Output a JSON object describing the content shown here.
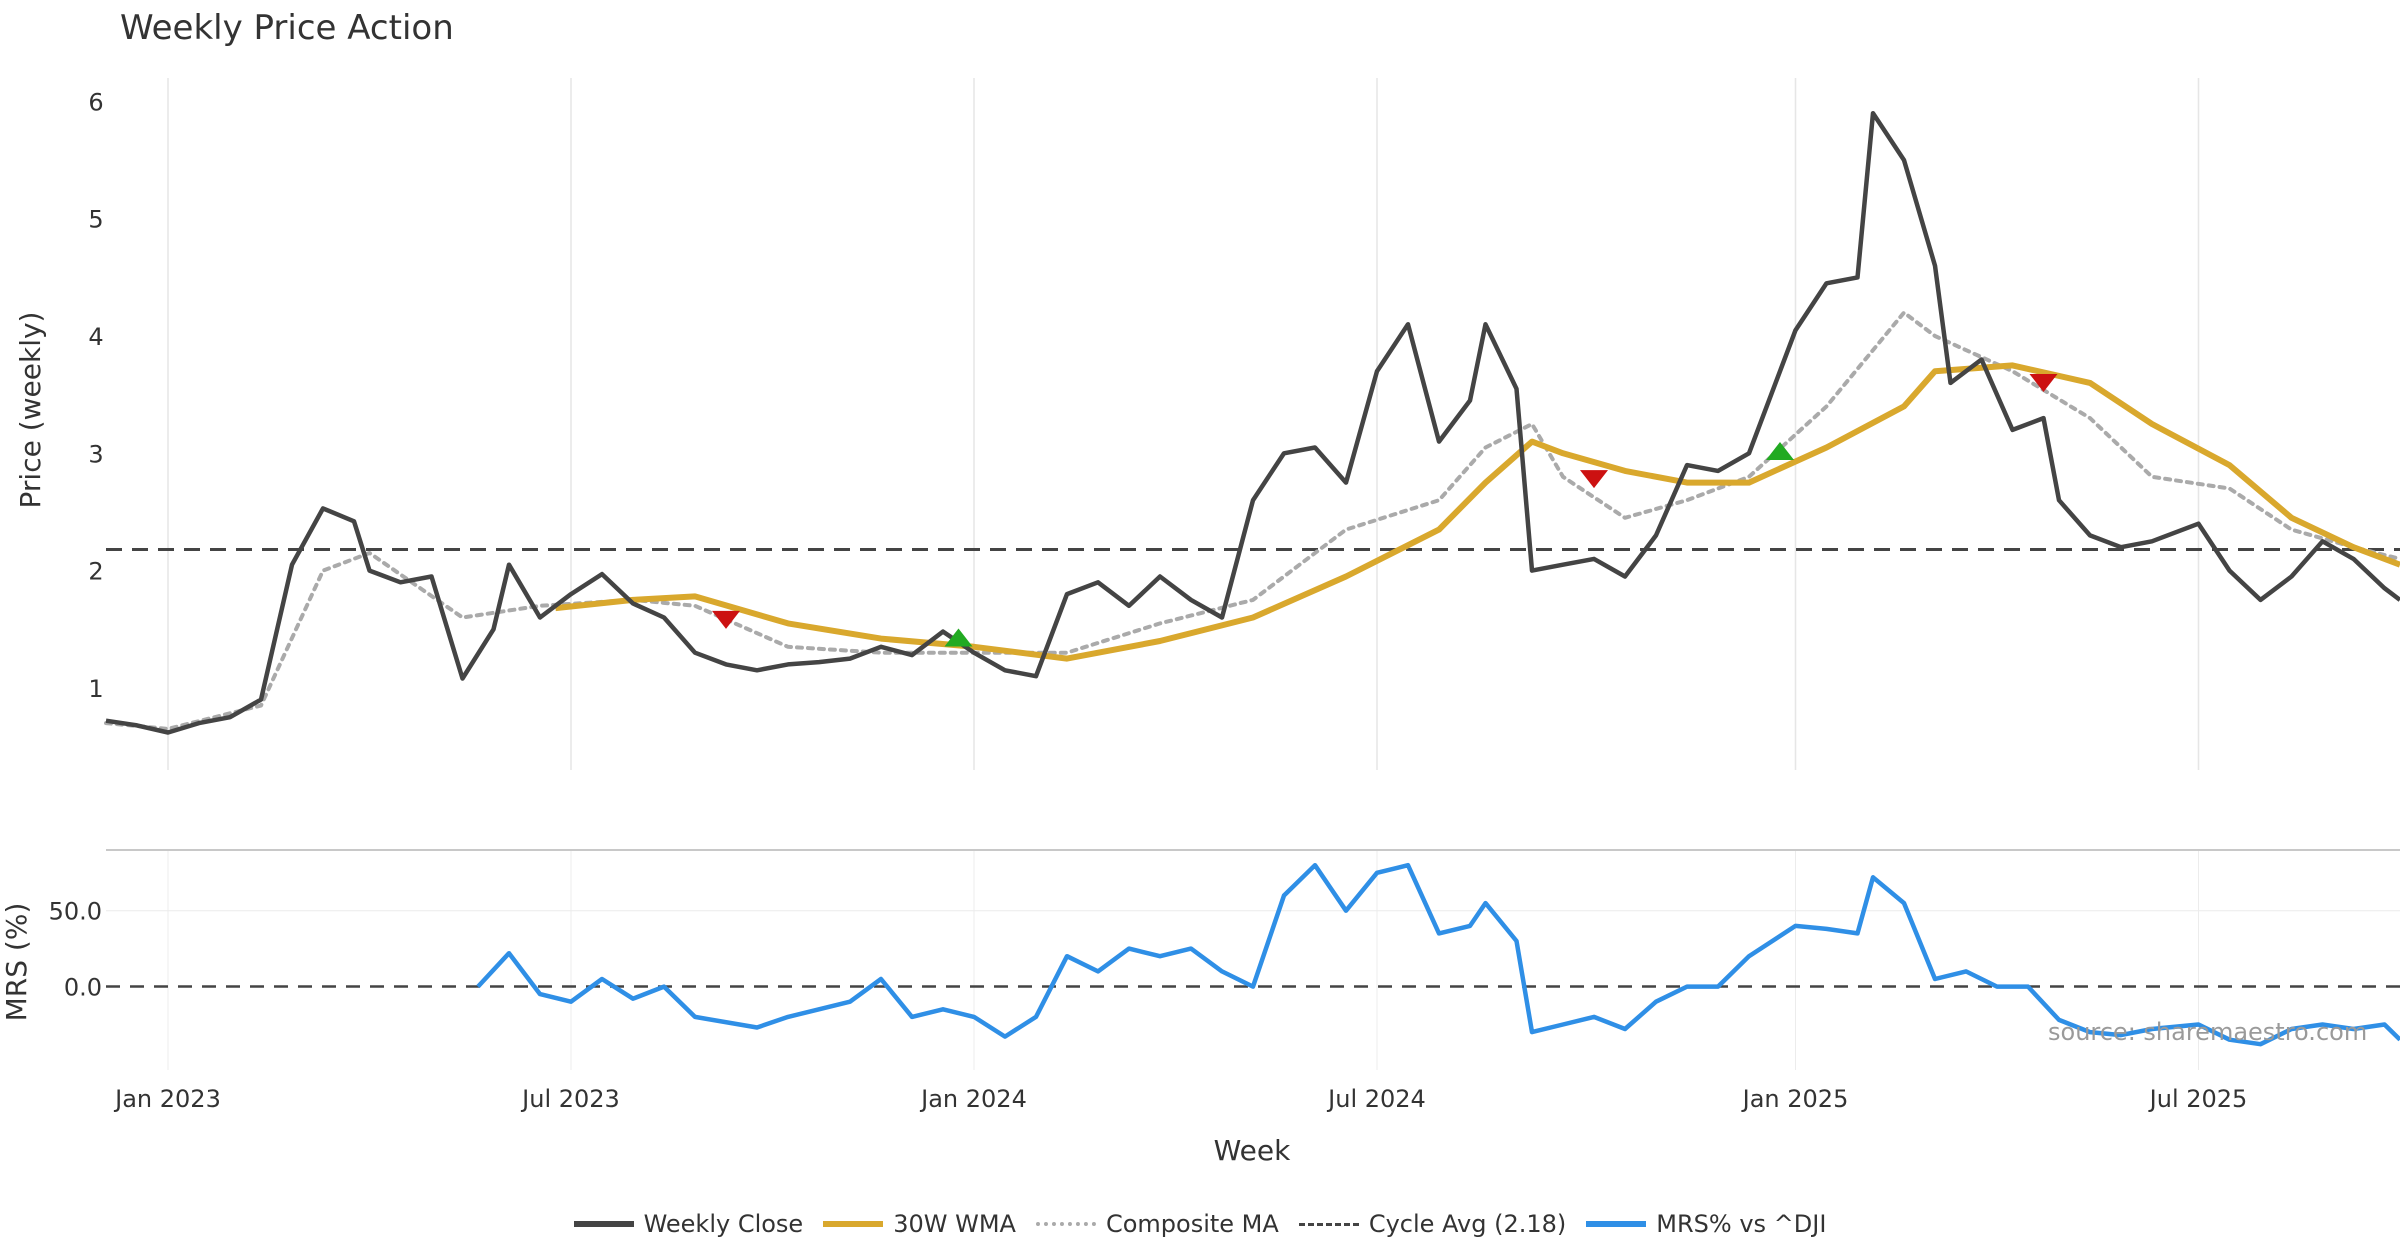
{
  "chart_data": [
    {
      "type": "line",
      "title": "Weekly Price Action",
      "ylabel": "Price (weekly)",
      "xlabel": "Week",
      "x_tick_labels": [
        "Jan 2023",
        "Jul 2023",
        "Jan 2024",
        "Jul 2024",
        "Jan 2025",
        "Jul 2025"
      ],
      "x_ticks": [
        "2023-01-02",
        "2023-07-03",
        "2024-01-01",
        "2024-07-01",
        "2025-01-06",
        "2025-07-07"
      ],
      "x_range": [
        "2022-12-05",
        "2025-10-06"
      ],
      "y_ticks": [
        1,
        2,
        3,
        4,
        5,
        6
      ],
      "ylim": [
        0.3,
        6.2
      ],
      "grid": "vertical",
      "series": [
        {
          "name": "Weekly Close",
          "color": "#444444",
          "points": [
            [
              "2022-12-05",
              0.72
            ],
            [
              "2022-12-19",
              0.68
            ],
            [
              "2023-01-02",
              0.62
            ],
            [
              "2023-01-16",
              0.7
            ],
            [
              "2023-01-30",
              0.75
            ],
            [
              "2023-02-13",
              0.9
            ],
            [
              "2023-02-27",
              2.05
            ],
            [
              "2023-03-13",
              2.53
            ],
            [
              "2023-03-27",
              2.42
            ],
            [
              "2023-04-03",
              2.0
            ],
            [
              "2023-04-17",
              1.9
            ],
            [
              "2023-05-01",
              1.95
            ],
            [
              "2023-05-15",
              1.08
            ],
            [
              "2023-05-29",
              1.5
            ],
            [
              "2023-06-05",
              2.05
            ],
            [
              "2023-06-19",
              1.6
            ],
            [
              "2023-07-03",
              1.8
            ],
            [
              "2023-07-17",
              1.97
            ],
            [
              "2023-07-31",
              1.72
            ],
            [
              "2023-08-14",
              1.6
            ],
            [
              "2023-08-28",
              1.3
            ],
            [
              "2023-09-11",
              1.2
            ],
            [
              "2023-09-25",
              1.15
            ],
            [
              "2023-10-09",
              1.2
            ],
            [
              "2023-10-23",
              1.22
            ],
            [
              "2023-11-06",
              1.25
            ],
            [
              "2023-11-20",
              1.35
            ],
            [
              "2023-12-04",
              1.28
            ],
            [
              "2023-12-18",
              1.48
            ],
            [
              "2024-01-01",
              1.3
            ],
            [
              "2024-01-15",
              1.15
            ],
            [
              "2024-01-29",
              1.1
            ],
            [
              "2024-02-12",
              1.8
            ],
            [
              "2024-02-26",
              1.9
            ],
            [
              "2024-03-11",
              1.7
            ],
            [
              "2024-03-25",
              1.95
            ],
            [
              "2024-04-08",
              1.75
            ],
            [
              "2024-04-22",
              1.6
            ],
            [
              "2024-05-06",
              2.6
            ],
            [
              "2024-05-20",
              3.0
            ],
            [
              "2024-06-03",
              3.05
            ],
            [
              "2024-06-17",
              2.75
            ],
            [
              "2024-07-01",
              3.7
            ],
            [
              "2024-07-15",
              4.1
            ],
            [
              "2024-07-29",
              3.1
            ],
            [
              "2024-08-12",
              3.45
            ],
            [
              "2024-08-19",
              4.1
            ],
            [
              "2024-09-02",
              3.55
            ],
            [
              "2024-09-09",
              2.0
            ],
            [
              "2024-09-23",
              2.05
            ],
            [
              "2024-10-07",
              2.1
            ],
            [
              "2024-10-21",
              1.95
            ],
            [
              "2024-11-04",
              2.3
            ],
            [
              "2024-11-18",
              2.9
            ],
            [
              "2024-12-02",
              2.85
            ],
            [
              "2024-12-16",
              3.0
            ],
            [
              "2025-01-06",
              4.05
            ],
            [
              "2025-01-20",
              4.45
            ],
            [
              "2025-02-03",
              4.5
            ],
            [
              "2025-02-10",
              5.9
            ],
            [
              "2025-02-24",
              5.5
            ],
            [
              "2025-03-10",
              4.6
            ],
            [
              "2025-03-17",
              3.6
            ],
            [
              "2025-03-31",
              3.8
            ],
            [
              "2025-04-14",
              3.2
            ],
            [
              "2025-04-28",
              3.3
            ],
            [
              "2025-05-05",
              2.6
            ],
            [
              "2025-05-19",
              2.3
            ],
            [
              "2025-06-02",
              2.2
            ],
            [
              "2025-06-16",
              2.25
            ],
            [
              "2025-07-07",
              2.4
            ],
            [
              "2025-07-21",
              2.0
            ],
            [
              "2025-08-04",
              1.75
            ],
            [
              "2025-08-18",
              1.95
            ],
            [
              "2025-09-01",
              2.25
            ],
            [
              "2025-09-15",
              2.1
            ],
            [
              "2025-09-29",
              1.85
            ],
            [
              "2025-10-06",
              1.75
            ]
          ]
        },
        {
          "name": "30W WMA",
          "color": "#d9a82d",
          "points": [
            [
              "2023-06-26",
              1.68
            ],
            [
              "2023-07-31",
              1.75
            ],
            [
              "2023-08-28",
              1.78
            ],
            [
              "2023-10-09",
              1.55
            ],
            [
              "2023-11-20",
              1.42
            ],
            [
              "2024-01-01",
              1.35
            ],
            [
              "2024-02-12",
              1.25
            ],
            [
              "2024-03-25",
              1.4
            ],
            [
              "2024-05-06",
              1.6
            ],
            [
              "2024-06-17",
              1.95
            ],
            [
              "2024-07-29",
              2.35
            ],
            [
              "2024-08-19",
              2.75
            ],
            [
              "2024-09-09",
              3.1
            ],
            [
              "2024-09-23",
              3.0
            ],
            [
              "2024-10-21",
              2.85
            ],
            [
              "2024-11-18",
              2.75
            ],
            [
              "2024-12-16",
              2.75
            ],
            [
              "2025-01-20",
              3.05
            ],
            [
              "2025-02-24",
              3.4
            ],
            [
              "2025-03-10",
              3.7
            ],
            [
              "2025-04-14",
              3.75
            ],
            [
              "2025-05-19",
              3.6
            ],
            [
              "2025-06-16",
              3.25
            ],
            [
              "2025-07-21",
              2.9
            ],
            [
              "2025-08-18",
              2.45
            ],
            [
              "2025-09-15",
              2.2
            ],
            [
              "2025-10-06",
              2.05
            ]
          ]
        },
        {
          "name": "Composite MA",
          "color": "#aaaaaa",
          "points": [
            [
              "2022-12-05",
              0.7
            ],
            [
              "2023-01-02",
              0.65
            ],
            [
              "2023-02-13",
              0.85
            ],
            [
              "2023-03-13",
              2.0
            ],
            [
              "2023-04-03",
              2.15
            ],
            [
              "2023-05-15",
              1.6
            ],
            [
              "2023-06-19",
              1.7
            ],
            [
              "2023-07-31",
              1.75
            ],
            [
              "2023-08-28",
              1.7
            ],
            [
              "2023-10-09",
              1.35
            ],
            [
              "2023-11-20",
              1.3
            ],
            [
              "2024-01-01",
              1.3
            ],
            [
              "2024-02-12",
              1.3
            ],
            [
              "2024-03-25",
              1.55
            ],
            [
              "2024-05-06",
              1.75
            ],
            [
              "2024-06-17",
              2.35
            ],
            [
              "2024-07-29",
              2.6
            ],
            [
              "2024-08-19",
              3.05
            ],
            [
              "2024-09-09",
              3.25
            ],
            [
              "2024-09-23",
              2.8
            ],
            [
              "2024-10-21",
              2.45
            ],
            [
              "2024-11-18",
              2.6
            ],
            [
              "2024-12-16",
              2.8
            ],
            [
              "2025-01-20",
              3.4
            ],
            [
              "2025-02-24",
              4.2
            ],
            [
              "2025-03-10",
              4.0
            ],
            [
              "2025-04-14",
              3.7
            ],
            [
              "2025-05-19",
              3.3
            ],
            [
              "2025-06-16",
              2.8
            ],
            [
              "2025-07-21",
              2.7
            ],
            [
              "2025-08-18",
              2.35
            ],
            [
              "2025-09-15",
              2.2
            ],
            [
              "2025-10-06",
              2.1
            ]
          ]
        },
        {
          "name": "Cycle Avg (2.18)",
          "color": "#444444",
          "value": 2.18
        }
      ],
      "signals": [
        {
          "type": "sell",
          "x": "2023-09-11",
          "y": 1.58,
          "color": "#cc1111"
        },
        {
          "type": "buy",
          "x": "2023-12-25",
          "y": 1.43,
          "color": "#22aa22"
        },
        {
          "type": "sell",
          "x": "2024-10-07",
          "y": 2.78,
          "color": "#cc1111"
        },
        {
          "type": "buy",
          "x": "2024-12-30",
          "y": 3.02,
          "color": "#22aa22"
        },
        {
          "type": "sell",
          "x": "2025-04-28",
          "y": 3.6,
          "color": "#cc1111"
        }
      ]
    },
    {
      "type": "line",
      "ylabel": "MRS (%)",
      "xlabel": "Week",
      "y_tick_labels": [
        "0.0",
        "50.0"
      ],
      "y_ticks": [
        0,
        50
      ],
      "ylim": [
        -55,
        90
      ],
      "zero_line": 0,
      "series": [
        {
          "name": "MRS% vs ^DJI",
          "color": "#2f8fe6",
          "points": [
            [
              "2023-05-22",
              0
            ],
            [
              "2023-06-05",
              22
            ],
            [
              "2023-06-19",
              -5
            ],
            [
              "2023-07-03",
              -10
            ],
            [
              "2023-07-17",
              5
            ],
            [
              "2023-07-31",
              -8
            ],
            [
              "2023-08-14",
              0
            ],
            [
              "2023-08-28",
              -20
            ],
            [
              "2023-09-25",
              -27
            ],
            [
              "2023-10-09",
              -20
            ],
            [
              "2023-10-23",
              -15
            ],
            [
              "2023-11-06",
              -10
            ],
            [
              "2023-11-20",
              5
            ],
            [
              "2023-12-04",
              -20
            ],
            [
              "2023-12-18",
              -15
            ],
            [
              "2024-01-01",
              -20
            ],
            [
              "2024-01-15",
              -33
            ],
            [
              "2024-01-29",
              -20
            ],
            [
              "2024-02-12",
              20
            ],
            [
              "2024-02-26",
              10
            ],
            [
              "2024-03-11",
              25
            ],
            [
              "2024-03-25",
              20
            ],
            [
              "2024-04-08",
              25
            ],
            [
              "2024-04-22",
              10
            ],
            [
              "2024-05-06",
              0
            ],
            [
              "2024-05-20",
              60
            ],
            [
              "2024-06-03",
              80
            ],
            [
              "2024-06-17",
              50
            ],
            [
              "2024-07-01",
              75
            ],
            [
              "2024-07-15",
              80
            ],
            [
              "2024-07-29",
              35
            ],
            [
              "2024-08-12",
              40
            ],
            [
              "2024-08-19",
              55
            ],
            [
              "2024-09-02",
              30
            ],
            [
              "2024-09-09",
              -30
            ],
            [
              "2024-09-23",
              -25
            ],
            [
              "2024-10-07",
              -20
            ],
            [
              "2024-10-21",
              -28
            ],
            [
              "2024-11-04",
              -10
            ],
            [
              "2024-11-18",
              0
            ],
            [
              "2024-12-02",
              0
            ],
            [
              "2024-12-16",
              20
            ],
            [
              "2025-01-06",
              40
            ],
            [
              "2025-01-20",
              38
            ],
            [
              "2025-02-03",
              35
            ],
            [
              "2025-02-10",
              72
            ],
            [
              "2025-02-24",
              55
            ],
            [
              "2025-03-10",
              5
            ],
            [
              "2025-03-24",
              10
            ],
            [
              "2025-04-07",
              0
            ],
            [
              "2025-04-21",
              0
            ],
            [
              "2025-05-05",
              -22
            ],
            [
              "2025-05-19",
              -30
            ],
            [
              "2025-06-02",
              -32
            ],
            [
              "2025-06-16",
              -28
            ],
            [
              "2025-07-07",
              -25
            ],
            [
              "2025-07-21",
              -35
            ],
            [
              "2025-08-04",
              -38
            ],
            [
              "2025-08-18",
              -28
            ],
            [
              "2025-09-01",
              -25
            ],
            [
              "2025-09-15",
              -28
            ],
            [
              "2025-09-29",
              -25
            ],
            [
              "2025-10-06",
              -35
            ]
          ]
        }
      ]
    }
  ],
  "source_text": "source: sharemaestro.com"
}
